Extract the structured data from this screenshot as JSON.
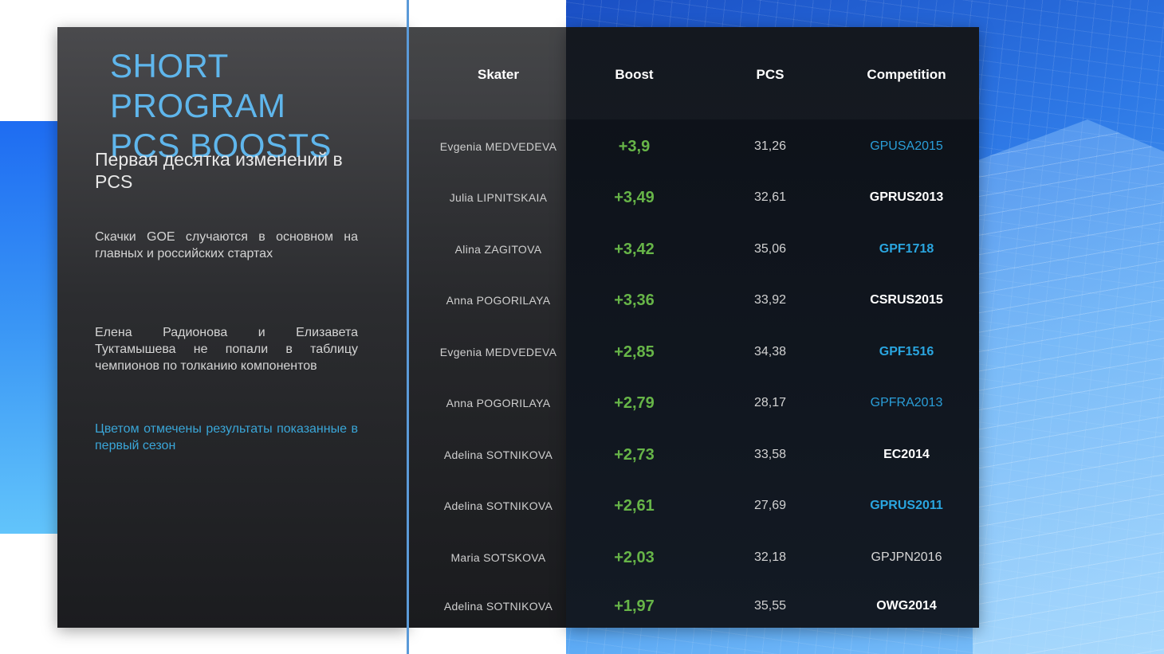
{
  "title": [
    "SHORT PROGRAM",
    "PCS BOOSTS"
  ],
  "subtitle": "Первая десятка изменений в PCS",
  "paragraphs": [
    "Скачки GOE случаются в основном на главных и российских стартах",
    "Елена Радионова и Елизавета Туктамышева не попали в таблицу чемпионов по толканию компонентов",
    "Цветом отмечены результаты показанные в первый сезон"
  ],
  "table": {
    "headers": [
      "Skater",
      "Boost",
      "PCS",
      "Competition"
    ],
    "rows": [
      {
        "skater": "Evgenia MEDVEDEVA",
        "boost": "+3,9",
        "pcs": "31,26",
        "competition": "GPUSA2015",
        "style": "blue"
      },
      {
        "skater": "Julia LIPNITSKAIA",
        "boost": "+3,49",
        "pcs": "32,61",
        "competition": "GPRUS2013",
        "style": "white"
      },
      {
        "skater": "Alina ZAGITOVA",
        "boost": "+3,42",
        "pcs": "35,06",
        "competition": "GPF1718",
        "style": "blue-bold"
      },
      {
        "skater": "Anna POGORILAYA",
        "boost": "+3,36",
        "pcs": "33,92",
        "competition": "CSRUS2015",
        "style": "white"
      },
      {
        "skater": "Evgenia MEDVEDEVA",
        "boost": "+2,85",
        "pcs": "34,38",
        "competition": "GPF1516",
        "style": "blue-bold"
      },
      {
        "skater": "Anna POGORILAYA",
        "boost": "+2,79",
        "pcs": "28,17",
        "competition": "GPFRA2013",
        "style": "blue"
      },
      {
        "skater": "Adelina SOTNIKOVA",
        "boost": "+2,73",
        "pcs": "33,58",
        "competition": "EC2014",
        "style": "white"
      },
      {
        "skater": "Adelina SOTNIKOVA",
        "boost": "+2,61",
        "pcs": "27,69",
        "competition": "GPRUS2011",
        "style": "blue-bold"
      },
      {
        "skater": "Maria SOTSKOVA",
        "boost": "+2,03",
        "pcs": "32,18",
        "competition": "GPJPN2016",
        "style": "gray"
      },
      {
        "skater": "Adelina SOTNIKOVA",
        "boost": "+1,97",
        "pcs": "35,55",
        "competition": "OWG2014",
        "style": "white"
      }
    ]
  },
  "colors": {
    "title": "#5fb6ec",
    "boost": "#67b548",
    "highlight_blue": "#2a9ed8",
    "accent_bar": "#3a96f5"
  }
}
